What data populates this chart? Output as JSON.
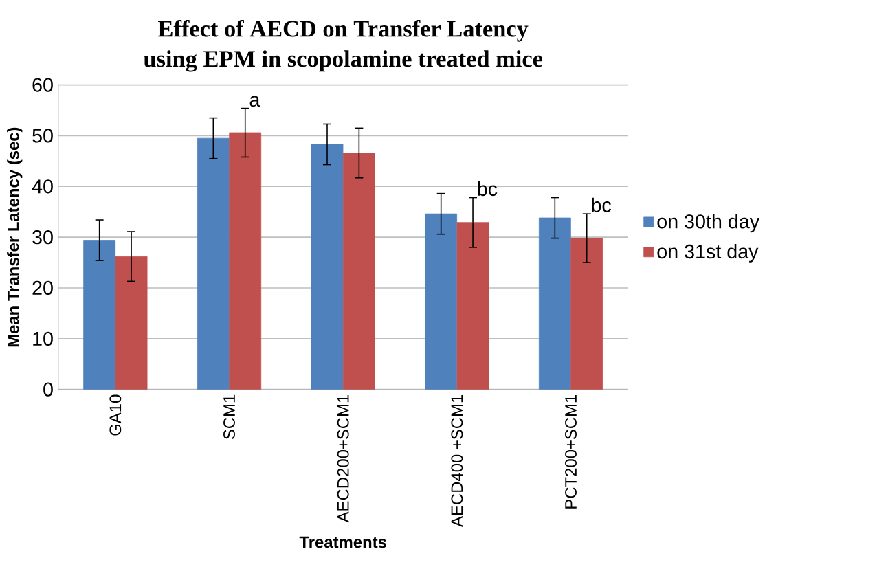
{
  "chart_data": {
    "type": "bar",
    "title": "Effect of AECD on Transfer Latency using EPM in scopolamine treated mice",
    "xlabel": "Treatments",
    "ylabel": "Mean Transfer Latency (sec)",
    "categories": [
      "GA10",
      "SCM1",
      "AECD200+SCM1",
      "AECD400 +SCM1",
      "PCT200+SCM1"
    ],
    "series": [
      {
        "name": "on 30th day",
        "color": "#4f81bd",
        "values": [
          29.4,
          49.5,
          48.3,
          34.6,
          33.8
        ],
        "errors": [
          4,
          4,
          4,
          4,
          4
        ]
      },
      {
        "name": "on 31st day",
        "color": "#c0504d",
        "values": [
          26.2,
          50.6,
          46.6,
          32.9,
          29.8
        ],
        "errors": [
          4.9,
          4.8,
          4.9,
          4.9,
          4.8
        ]
      }
    ],
    "annotations": [
      {
        "text": "a",
        "x": "SCM1",
        "y": 50.6
      },
      {
        "text": "bc",
        "x": "AECD400 +SCM1",
        "y": 32.9
      },
      {
        "text": "bc",
        "x": "PCT200+SCM1",
        "y": 29.8
      }
    ],
    "ylim": [
      0,
      60
    ],
    "yticks": [
      0,
      10,
      20,
      30,
      40,
      50,
      60
    ],
    "grid": "y",
    "legend": "right"
  }
}
